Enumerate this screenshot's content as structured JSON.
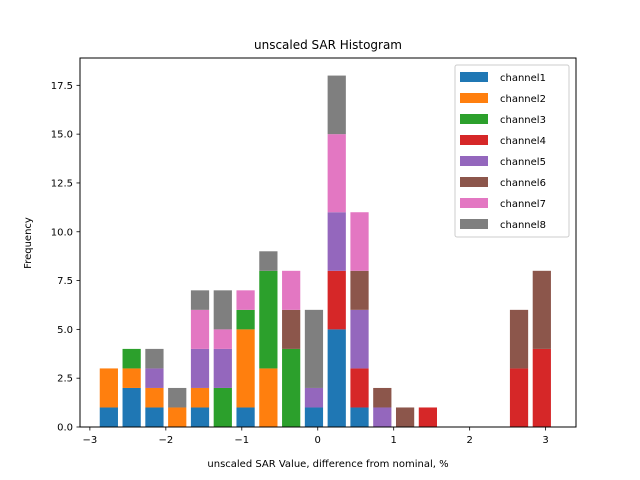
{
  "chart_data": {
    "type": "bar",
    "stacked": true,
    "title": "unscaled SAR Histogram",
    "xlabel": "unscaled SAR Value, difference from nominal, %",
    "ylabel": "Frequency",
    "xlim": [
      -3.13,
      3.4
    ],
    "ylim": [
      0,
      18.9
    ],
    "xticks": [
      -3,
      -2,
      -1,
      0,
      1,
      2,
      3
    ],
    "xtick_labels": [
      "−3",
      "−2",
      "−1",
      "0",
      "1",
      "2",
      "3"
    ],
    "yticks": [
      0,
      2.5,
      5,
      7.5,
      10,
      12.5,
      15,
      17.5
    ],
    "ytick_labels": [
      "0.0",
      "2.5",
      "5.0",
      "7.5",
      "10.0",
      "12.5",
      "15.0",
      "17.5"
    ],
    "bar_width": 0.24,
    "legend_position": "top-right",
    "x": [
      -2.75,
      -2.45,
      -2.15,
      -1.85,
      -1.55,
      -1.25,
      -0.95,
      -0.65,
      -0.35,
      -0.05,
      0.25,
      0.55,
      0.85,
      1.15,
      1.45,
      2.65,
      2.95
    ],
    "series": [
      {
        "name": "channel1",
        "color": "#1f77b4",
        "values": [
          1,
          2,
          1,
          0,
          1,
          0,
          1,
          0,
          0,
          1,
          5,
          1,
          0,
          0,
          0,
          0,
          0
        ]
      },
      {
        "name": "channel2",
        "color": "#ff7f0e",
        "values": [
          2,
          1,
          1,
          1,
          1,
          0,
          4,
          3,
          0,
          0,
          0,
          0,
          0,
          0,
          0,
          0,
          0
        ]
      },
      {
        "name": "channel3",
        "color": "#2ca02c",
        "values": [
          0,
          1,
          0,
          0,
          0,
          2,
          1,
          5,
          4,
          0,
          0,
          0,
          0,
          0,
          0,
          0,
          0
        ]
      },
      {
        "name": "channel4",
        "color": "#d62728",
        "values": [
          0,
          0,
          0,
          0,
          0,
          0,
          0,
          0,
          0,
          0,
          3,
          2,
          0,
          0,
          1,
          3,
          4
        ]
      },
      {
        "name": "channel5",
        "color": "#9467bd",
        "values": [
          0,
          0,
          1,
          0,
          2,
          2,
          0,
          0,
          0,
          1,
          3,
          3,
          1,
          0,
          0,
          0,
          0
        ]
      },
      {
        "name": "channel6",
        "color": "#8c564b",
        "values": [
          0,
          0,
          0,
          0,
          0,
          0,
          0,
          0,
          2,
          0,
          0,
          2,
          1,
          1,
          0,
          3,
          4
        ]
      },
      {
        "name": "channel7",
        "color": "#e377c2",
        "values": [
          0,
          0,
          0,
          0,
          2,
          1,
          1,
          0,
          2,
          0,
          4,
          3,
          0,
          0,
          0,
          0,
          0
        ]
      },
      {
        "name": "channel8",
        "color": "#7f7f7f",
        "values": [
          0,
          0,
          1,
          1,
          1,
          2,
          0,
          1,
          0,
          4,
          3,
          0,
          0,
          0,
          0,
          0,
          0
        ]
      }
    ]
  }
}
